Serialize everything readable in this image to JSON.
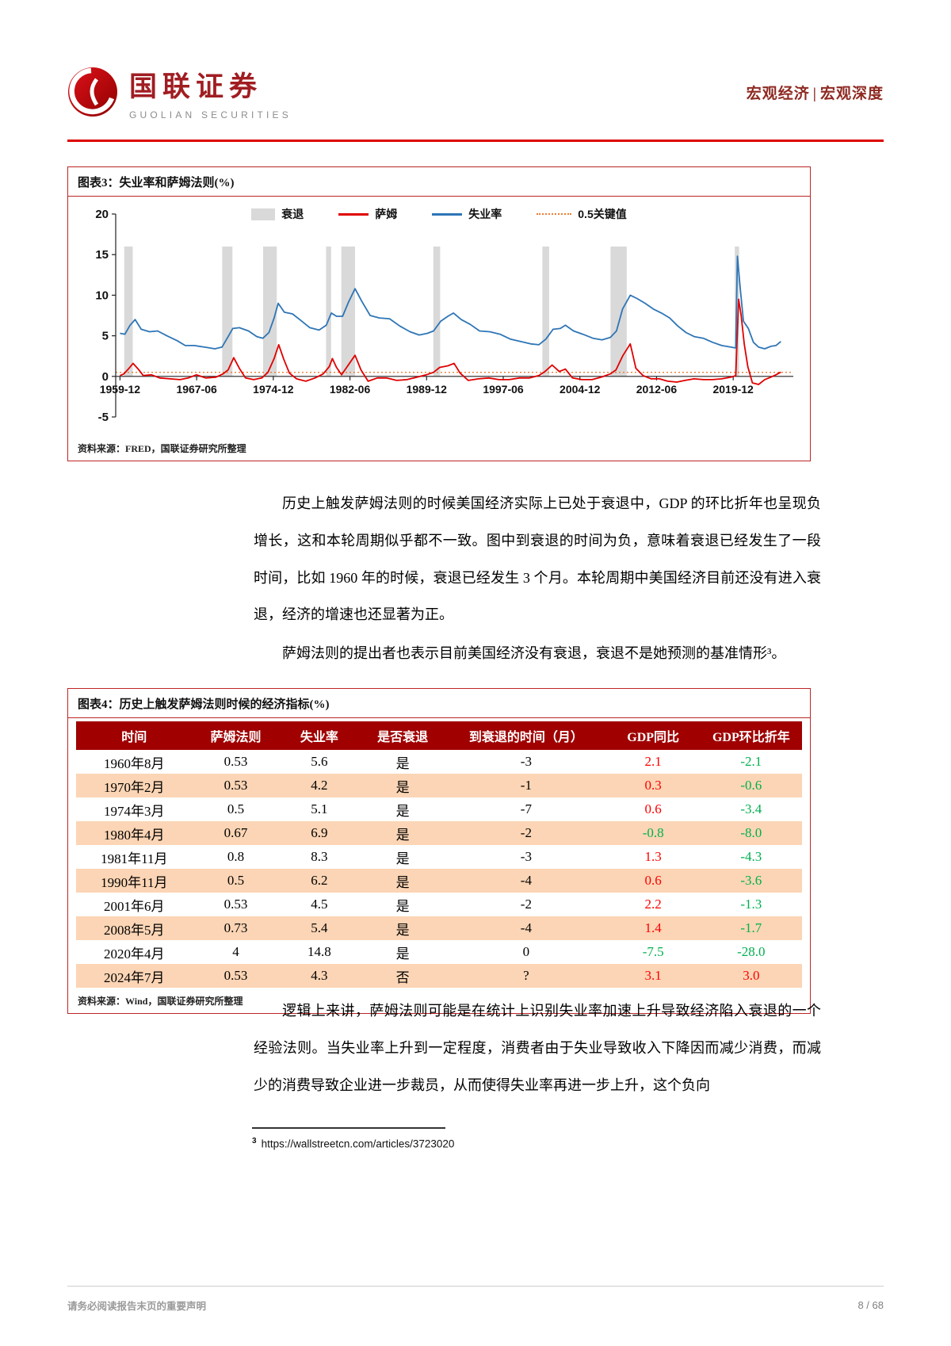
{
  "header": {
    "brand_cn": "国联证券",
    "brand_en": "GUOLIAN SECURITIES",
    "category_left": "宏观经济",
    "category_sep": "|",
    "category_right": "宏观深度"
  },
  "figure3": {
    "title": "图表3：失业率和萨姆法则(%)",
    "source": "资料来源：FRED，国联证券研究所整理"
  },
  "paragraphs": {
    "p1": "历史上触发萨姆法则的时候美国经济实际上已处于衰退中，GDP 的环比折年也呈现负增长，这和本轮周期似乎都不一致。图中到衰退的时间为负，意味着衰退已经发生了一段时间，比如 1960 年的时候，衰退已经发生 3 个月。本轮周期中美国经济目前还没有进入衰退，经济的增速也还显著为正。",
    "p2": "萨姆法则的提出者也表示目前美国经济没有衰退，衰退不是她预测的基准情形³。",
    "p3": "逻辑上来讲，萨姆法则可能是在统计上识别失业率加速上升导致经济陷入衰退的一个经验法则。当失业率上升到一定程度，消费者由于失业导致收入下降因而减少消费，而减少的消费导致企业进一步裁员，从而使得失业率再进一步上升，这个负向"
  },
  "figure4": {
    "title": "图表4：历史上触发萨姆法则时候的经济指标(%)",
    "source": "资料来源：Wind，国联证券研究所整理",
    "table": {
      "headers": [
        "时间",
        "萨姆法则",
        "失业率",
        "是否衰退",
        "到衰退的时间（月）",
        "GDP同比",
        "GDP环比折年"
      ],
      "colored_columns": [
        5,
        6
      ],
      "positive_color": "#ff0000",
      "negative_color": "#00b050",
      "rows": [
        [
          "1960年8月",
          "0.53",
          "5.6",
          "是",
          "-3",
          "2.1",
          "-2.1"
        ],
        [
          "1970年2月",
          "0.53",
          "4.2",
          "是",
          "-1",
          "0.3",
          "-0.6"
        ],
        [
          "1974年3月",
          "0.5",
          "5.1",
          "是",
          "-7",
          "0.6",
          "-3.4"
        ],
        [
          "1980年4月",
          "0.67",
          "6.9",
          "是",
          "-2",
          "-0.8",
          "-8.0"
        ],
        [
          "1981年11月",
          "0.8",
          "8.3",
          "是",
          "-3",
          "1.3",
          "-4.3"
        ],
        [
          "1990年11月",
          "0.5",
          "6.2",
          "是",
          "-4",
          "0.6",
          "-3.6"
        ],
        [
          "2001年6月",
          "0.53",
          "4.5",
          "是",
          "-2",
          "2.2",
          "-1.3"
        ],
        [
          "2008年5月",
          "0.73",
          "5.4",
          "是",
          "-4",
          "1.4",
          "-1.7"
        ],
        [
          "2020年4月",
          "4",
          "14.8",
          "是",
          "0",
          "-7.5",
          "-28.0"
        ],
        [
          "2024年7月",
          "0.53",
          "4.3",
          "否",
          "?",
          "3.1",
          "3.0"
        ]
      ]
    }
  },
  "footnote": {
    "marker": "3",
    "url": "https://wallstreetcn.com/articles/3723020"
  },
  "footer": {
    "disclaimer": "请务必阅读报告末页的重要声明",
    "page_number": "8 / 68"
  },
  "chart_data": {
    "type": "line",
    "title": "失业率和萨姆法则(%)",
    "ylim": [
      -5,
      20
    ],
    "yticks": [
      20,
      15,
      10,
      5,
      0,
      -5
    ],
    "xlim": [
      1959.5,
      2025.8
    ],
    "xticks": [
      {
        "x": 1959.92,
        "label": "1959-12"
      },
      {
        "x": 1967.42,
        "label": "1967-06"
      },
      {
        "x": 1974.92,
        "label": "1974-12"
      },
      {
        "x": 1982.42,
        "label": "1982-06"
      },
      {
        "x": 1989.92,
        "label": "1989-12"
      },
      {
        "x": 1997.42,
        "label": "1997-06"
      },
      {
        "x": 2004.92,
        "label": "2004-12"
      },
      {
        "x": 2012.42,
        "label": "2012-06"
      },
      {
        "x": 2019.92,
        "label": "2019-12"
      }
    ],
    "threshold": {
      "value": 0.5,
      "label": "0.5关键值",
      "color": "#ed7d31"
    },
    "band_top": 16,
    "recessions": [
      [
        1960.33,
        1961.17
      ],
      [
        1969.92,
        1970.92
      ],
      [
        1973.92,
        1975.25
      ],
      [
        1980.08,
        1980.58
      ],
      [
        1981.58,
        1982.92
      ],
      [
        1990.58,
        1991.25
      ],
      [
        2001.25,
        2001.92
      ],
      [
        2007.92,
        2009.5
      ],
      [
        2020.08,
        2020.5
      ]
    ],
    "legend": [
      {
        "key": "recession",
        "label": "衰退",
        "type": "band",
        "color": "#d9d9d9"
      },
      {
        "key": "sahm",
        "label": "萨姆",
        "type": "line",
        "color": "#e00000"
      },
      {
        "key": "unemployment",
        "label": "失业率",
        "type": "line",
        "color": "#2e75b6"
      },
      {
        "key": "threshold",
        "label": "0.5关键值",
        "type": "dotted",
        "color": "#ed7d31"
      }
    ],
    "series": [
      {
        "name": "萨姆",
        "key": "sahm",
        "color": "#e00000",
        "points": [
          [
            1959.92,
            0.1
          ],
          [
            1960.3,
            0.3
          ],
          [
            1960.8,
            1.0
          ],
          [
            1961.2,
            1.6
          ],
          [
            1961.7,
            0.9
          ],
          [
            1962.2,
            0.1
          ],
          [
            1963.0,
            0.2
          ],
          [
            1963.8,
            -0.2
          ],
          [
            1964.8,
            -0.3
          ],
          [
            1965.8,
            -0.4
          ],
          [
            1966.6,
            -0.2
          ],
          [
            1967.4,
            0.2
          ],
          [
            1968.3,
            -0.2
          ],
          [
            1969.3,
            -0.1
          ],
          [
            1970.0,
            0.3
          ],
          [
            1970.5,
            0.8
          ],
          [
            1971.05,
            2.3
          ],
          [
            1971.6,
            1.0
          ],
          [
            1972.2,
            -0.2
          ],
          [
            1973.0,
            -0.4
          ],
          [
            1973.8,
            -0.2
          ],
          [
            1974.4,
            0.5
          ],
          [
            1975.0,
            2.2
          ],
          [
            1975.45,
            3.9
          ],
          [
            1975.95,
            2.1
          ],
          [
            1976.5,
            0.4
          ],
          [
            1977.2,
            -0.3
          ],
          [
            1978.1,
            -0.6
          ],
          [
            1979.0,
            -0.2
          ],
          [
            1979.8,
            0.3
          ],
          [
            1980.4,
            1.2
          ],
          [
            1980.7,
            2.2
          ],
          [
            1981.1,
            1.1
          ],
          [
            1981.6,
            0.2
          ],
          [
            1982.1,
            1.1
          ],
          [
            1982.92,
            2.6
          ],
          [
            1983.5,
            0.8
          ],
          [
            1984.2,
            -0.6
          ],
          [
            1985.1,
            -0.2
          ],
          [
            1986.0,
            -0.2
          ],
          [
            1987.0,
            -0.5
          ],
          [
            1988.0,
            -0.4
          ],
          [
            1989.0,
            -0.1
          ],
          [
            1989.9,
            0.2
          ],
          [
            1990.6,
            0.5
          ],
          [
            1991.2,
            1.1
          ],
          [
            1992.0,
            1.3
          ],
          [
            1992.6,
            1.6
          ],
          [
            1993.2,
            0.4
          ],
          [
            1994.0,
            -0.5
          ],
          [
            1995.0,
            -0.3
          ],
          [
            1996.0,
            -0.2
          ],
          [
            1997.0,
            -0.4
          ],
          [
            1998.0,
            -0.4
          ],
          [
            1999.0,
            -0.2
          ],
          [
            2000.0,
            -0.2
          ],
          [
            2000.9,
            0.1
          ],
          [
            2001.5,
            0.6
          ],
          [
            2002.2,
            1.4
          ],
          [
            2002.9,
            0.6
          ],
          [
            2003.5,
            0.9
          ],
          [
            2004.2,
            -0.2
          ],
          [
            2005.1,
            -0.4
          ],
          [
            2006.1,
            -0.4
          ],
          [
            2007.0,
            -0.1
          ],
          [
            2007.9,
            0.3
          ],
          [
            2008.45,
            0.8
          ],
          [
            2009.1,
            2.5
          ],
          [
            2009.85,
            4.0
          ],
          [
            2010.4,
            1.0
          ],
          [
            2011.1,
            0.1
          ],
          [
            2011.9,
            -0.3
          ],
          [
            2012.7,
            -0.3
          ],
          [
            2013.5,
            -0.6
          ],
          [
            2014.4,
            -0.7
          ],
          [
            2015.2,
            -0.5
          ],
          [
            2016.1,
            -0.3
          ],
          [
            2017.0,
            -0.4
          ],
          [
            2017.9,
            -0.4
          ],
          [
            2018.8,
            -0.3
          ],
          [
            2019.7,
            -0.1
          ],
          [
            2020.17,
            0.1
          ],
          [
            2020.45,
            9.5
          ],
          [
            2020.7,
            7.5
          ],
          [
            2021.0,
            4.0
          ],
          [
            2021.35,
            1.2
          ],
          [
            2021.8,
            -0.8
          ],
          [
            2022.4,
            -1.0
          ],
          [
            2023.0,
            -0.4
          ],
          [
            2023.6,
            -0.1
          ],
          [
            2024.1,
            0.2
          ],
          [
            2024.58,
            0.53
          ]
        ]
      },
      {
        "name": "失业率",
        "key": "unemployment",
        "color": "#2e75b6",
        "points": [
          [
            1959.92,
            5.3
          ],
          [
            1960.4,
            5.2
          ],
          [
            1960.9,
            6.3
          ],
          [
            1961.4,
            7.0
          ],
          [
            1962.0,
            5.8
          ],
          [
            1962.8,
            5.5
          ],
          [
            1963.6,
            5.6
          ],
          [
            1964.5,
            5.0
          ],
          [
            1965.5,
            4.4
          ],
          [
            1966.3,
            3.8
          ],
          [
            1967.2,
            3.8
          ],
          [
            1968.2,
            3.6
          ],
          [
            1969.2,
            3.4
          ],
          [
            1969.9,
            3.6
          ],
          [
            1970.5,
            4.9
          ],
          [
            1970.95,
            5.9
          ],
          [
            1971.6,
            6.0
          ],
          [
            1972.5,
            5.6
          ],
          [
            1973.3,
            4.9
          ],
          [
            1973.9,
            4.7
          ],
          [
            1974.5,
            5.4
          ],
          [
            1975.0,
            7.2
          ],
          [
            1975.4,
            9.0
          ],
          [
            1976.0,
            7.9
          ],
          [
            1976.8,
            7.7
          ],
          [
            1977.6,
            6.9
          ],
          [
            1978.5,
            6.0
          ],
          [
            1979.4,
            5.7
          ],
          [
            1980.1,
            6.3
          ],
          [
            1980.6,
            7.8
          ],
          [
            1981.1,
            7.4
          ],
          [
            1981.7,
            7.4
          ],
          [
            1982.3,
            9.2
          ],
          [
            1982.92,
            10.8
          ],
          [
            1983.6,
            9.2
          ],
          [
            1984.4,
            7.5
          ],
          [
            1985.3,
            7.2
          ],
          [
            1986.3,
            7.1
          ],
          [
            1987.3,
            6.2
          ],
          [
            1988.3,
            5.5
          ],
          [
            1989.2,
            5.1
          ],
          [
            1990.0,
            5.3
          ],
          [
            1990.6,
            5.6
          ],
          [
            1991.3,
            6.8
          ],
          [
            1992.0,
            7.4
          ],
          [
            1992.55,
            7.8
          ],
          [
            1993.3,
            7.0
          ],
          [
            1994.2,
            6.4
          ],
          [
            1995.1,
            5.6
          ],
          [
            1996.1,
            5.5
          ],
          [
            1997.1,
            5.2
          ],
          [
            1998.1,
            4.6
          ],
          [
            1999.1,
            4.3
          ],
          [
            2000.1,
            4.0
          ],
          [
            2000.9,
            3.9
          ],
          [
            2001.6,
            4.6
          ],
          [
            2002.3,
            5.8
          ],
          [
            2003.0,
            5.9
          ],
          [
            2003.5,
            6.3
          ],
          [
            2004.3,
            5.6
          ],
          [
            2005.2,
            5.2
          ],
          [
            2006.2,
            4.7
          ],
          [
            2007.1,
            4.5
          ],
          [
            2007.9,
            4.8
          ],
          [
            2008.5,
            5.6
          ],
          [
            2009.1,
            8.3
          ],
          [
            2009.85,
            10.0
          ],
          [
            2010.5,
            9.6
          ],
          [
            2011.3,
            9.0
          ],
          [
            2012.1,
            8.3
          ],
          [
            2012.9,
            7.8
          ],
          [
            2013.7,
            7.2
          ],
          [
            2014.5,
            6.2
          ],
          [
            2015.3,
            5.4
          ],
          [
            2016.1,
            4.9
          ],
          [
            2017.0,
            4.7
          ],
          [
            2017.9,
            4.2
          ],
          [
            2018.8,
            3.8
          ],
          [
            2019.7,
            3.6
          ],
          [
            2020.17,
            3.5
          ],
          [
            2020.33,
            14.8
          ],
          [
            2020.6,
            11.0
          ],
          [
            2020.92,
            6.8
          ],
          [
            2021.4,
            5.9
          ],
          [
            2021.9,
            4.2
          ],
          [
            2022.4,
            3.6
          ],
          [
            2023.0,
            3.4
          ],
          [
            2023.6,
            3.7
          ],
          [
            2024.1,
            3.8
          ],
          [
            2024.58,
            4.3
          ]
        ]
      }
    ]
  }
}
